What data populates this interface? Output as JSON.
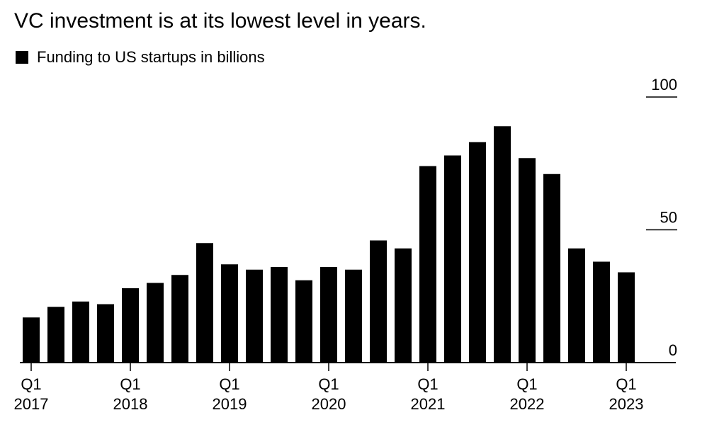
{
  "chart_data": {
    "type": "bar",
    "title": "VC investment is at its lowest level in years.",
    "series": [
      {
        "name": "Funding to US startups in billions",
        "color": "#000000",
        "values": [
          17,
          21,
          23,
          22,
          28,
          30,
          33,
          45,
          37,
          35,
          36,
          31,
          36,
          35,
          46,
          43,
          74,
          78,
          83,
          89,
          77,
          71,
          43,
          38,
          34
        ]
      }
    ],
    "categories": [
      "Q1 2017",
      "Q2 2017",
      "Q3 2017",
      "Q4 2017",
      "Q1 2018",
      "Q2 2018",
      "Q3 2018",
      "Q4 2018",
      "Q1 2019",
      "Q2 2019",
      "Q3 2019",
      "Q4 2019",
      "Q1 2020",
      "Q2 2020",
      "Q3 2020",
      "Q4 2020",
      "Q1 2021",
      "Q2 2021",
      "Q3 2021",
      "Q4 2021",
      "Q1 2022",
      "Q2 2022",
      "Q3 2022",
      "Q4 2022",
      "Q1 2023"
    ],
    "x_ticks": [
      {
        "index": 0,
        "quarter": "Q1",
        "year": "2017"
      },
      {
        "index": 4,
        "quarter": "Q1",
        "year": "2018"
      },
      {
        "index": 8,
        "quarter": "Q1",
        "year": "2019"
      },
      {
        "index": 12,
        "quarter": "Q1",
        "year": "2020"
      },
      {
        "index": 16,
        "quarter": "Q1",
        "year": "2021"
      },
      {
        "index": 20,
        "quarter": "Q1",
        "year": "2022"
      },
      {
        "index": 24,
        "quarter": "Q1",
        "year": "2023"
      }
    ],
    "y_ticks": [
      0,
      50,
      100
    ],
    "ylim": [
      0,
      100
    ],
    "xlabel": "",
    "ylabel": "",
    "y_axis_side": "right",
    "grid": false,
    "legend_position": "top-left"
  }
}
